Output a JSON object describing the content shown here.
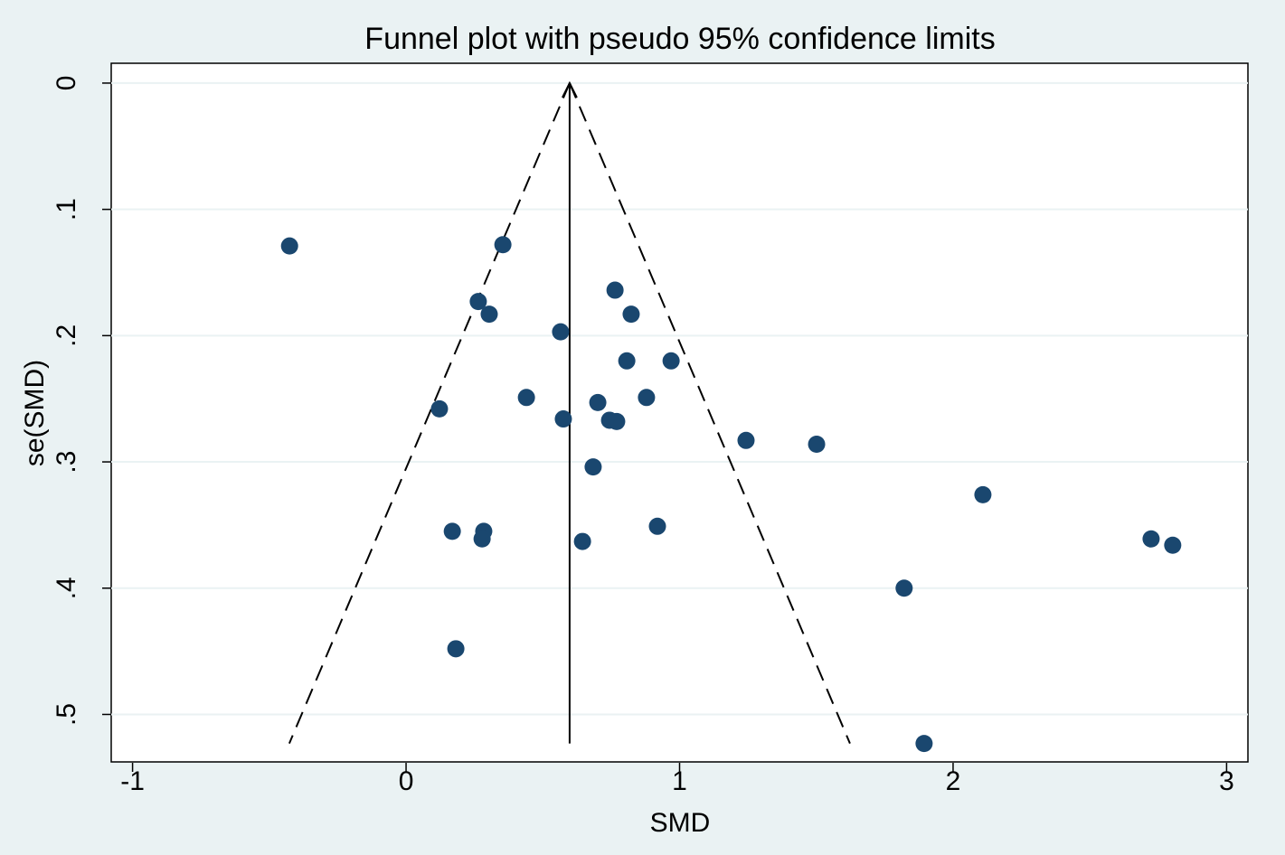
{
  "chart_data": {
    "type": "scatter",
    "title": "Funnel plot with pseudo 95% confidence limits",
    "x_label": "SMD",
    "y_label": "se(SMD)",
    "color": "#1a476f",
    "grid": true,
    "y_inverted": true,
    "xlim": [
      -1.078,
      3.078
    ],
    "ylim": [
      -0.0157,
      0.5376
    ],
    "xticks": [
      -1,
      0,
      1,
      2,
      3
    ],
    "yticks": [
      0,
      {
        "value": 0.1,
        "label": ".1"
      },
      {
        "value": 0.2,
        "label": ".2"
      },
      {
        "value": 0.3,
        "label": ".3"
      },
      {
        "value": 0.4,
        "label": ".4"
      },
      {
        "value": 0.5,
        "label": ".5"
      }
    ],
    "x": [
      -0.426,
      0.354,
      0.264,
      0.304,
      0.764,
      0.823,
      0.565,
      0.807,
      0.969,
      0.44,
      0.701,
      0.879,
      0.122,
      0.575,
      0.744,
      0.77,
      1.243,
      1.501,
      0.684,
      2.109,
      0.169,
      0.284,
      0.278,
      0.919,
      0.645,
      2.724,
      2.803,
      1.821,
      0.182,
      1.894
    ],
    "values": [
      0.129,
      0.128,
      0.173,
      0.183,
      0.164,
      0.183,
      0.197,
      0.22,
      0.22,
      0.249,
      0.253,
      0.249,
      0.258,
      0.266,
      0.267,
      0.268,
      0.283,
      0.286,
      0.304,
      0.326,
      0.355,
      0.355,
      0.361,
      0.351,
      0.363,
      0.361,
      0.366,
      0.4,
      0.448,
      0.523
    ],
    "pooled_line": {
      "x": [
        0.598,
        0.598
      ],
      "y": [
        0,
        0.523
      ]
    },
    "confidence_limits": [
      {
        "x": [
          0.598,
          -0.427
        ],
        "y": [
          0,
          0.523
        ]
      },
      {
        "x": [
          0.598,
          1.623
        ],
        "y": [
          0,
          0.523
        ]
      }
    ]
  }
}
